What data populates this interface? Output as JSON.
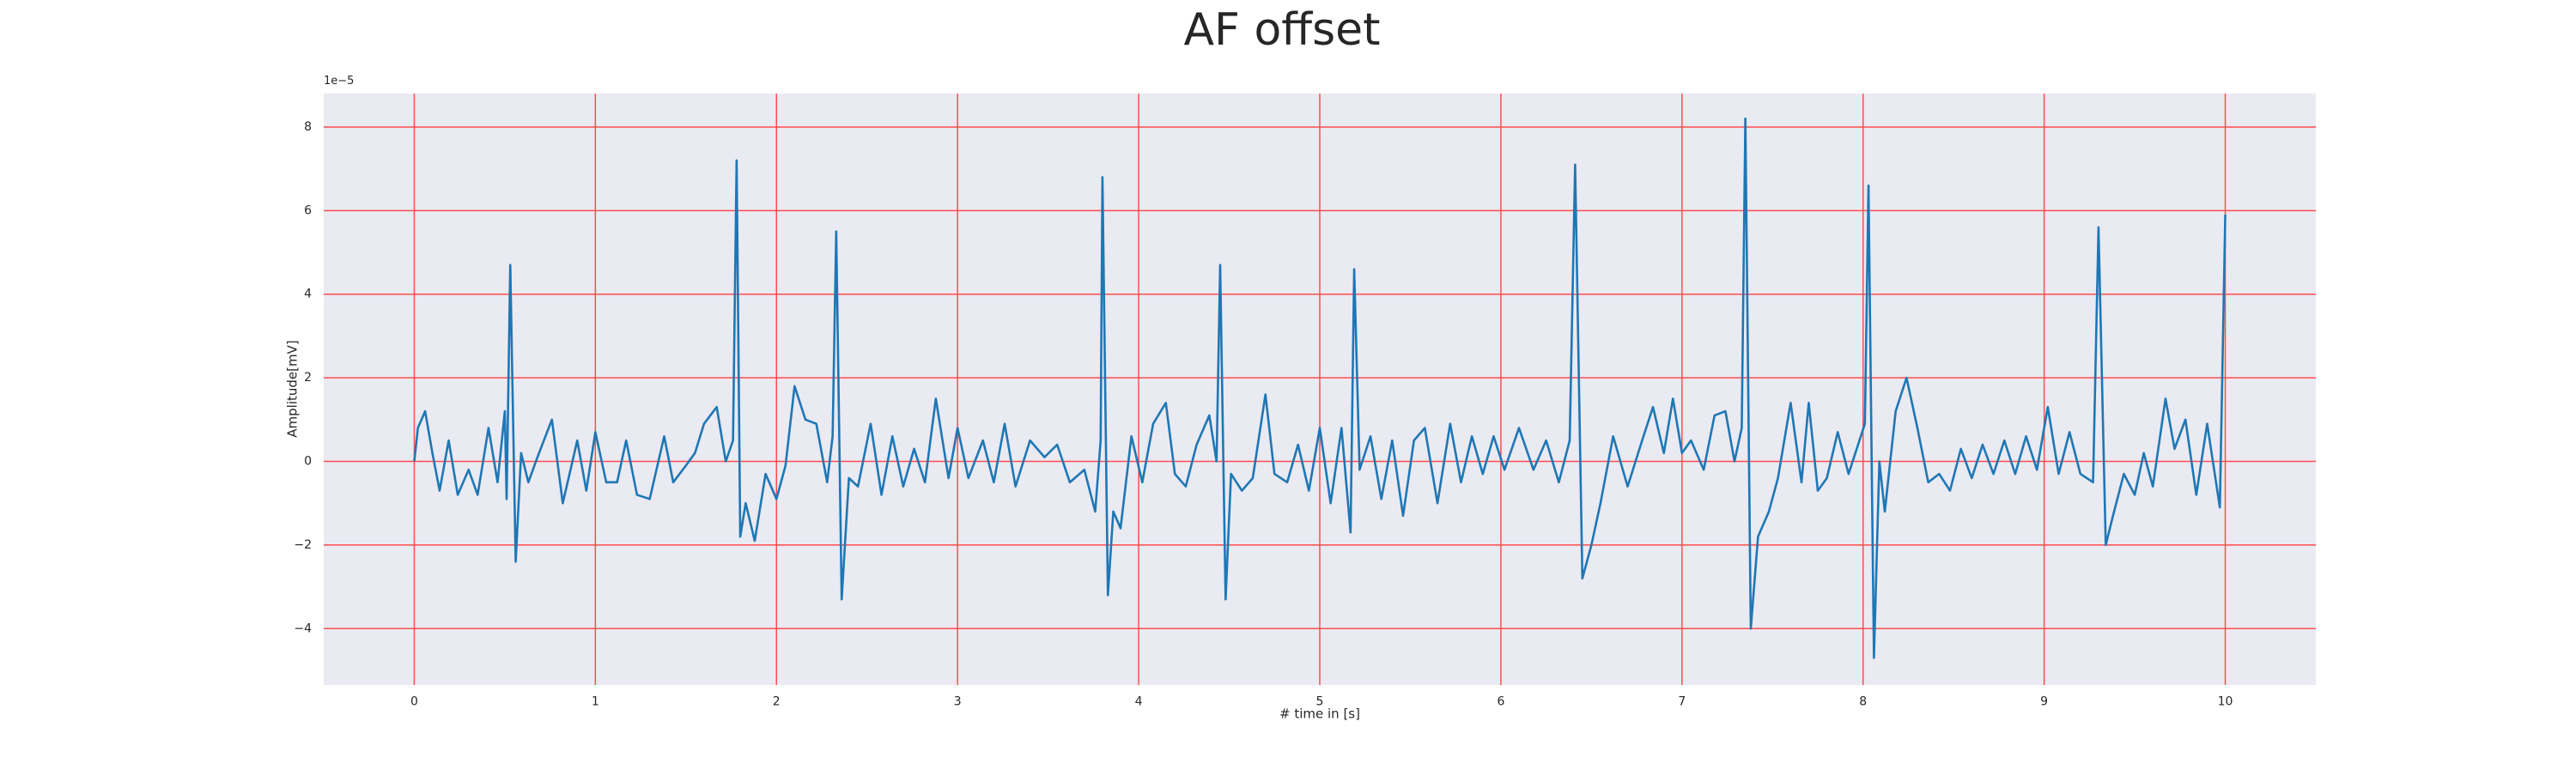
{
  "chart_data": {
    "type": "line",
    "title": "AF offset",
    "xlabel": "# time in [s]",
    "ylabel": "Amplitude[mV]",
    "y_offset_text": "1e−5",
    "x": [
      0.0,
      0.02,
      0.06,
      0.1,
      0.14,
      0.19,
      0.24,
      0.3,
      0.35,
      0.41,
      0.46,
      0.5,
      0.51,
      0.53,
      0.56,
      0.59,
      0.63,
      0.68,
      0.76,
      0.82,
      0.9,
      0.95,
      1.0,
      1.06,
      1.12,
      1.17,
      1.23,
      1.3,
      1.38,
      1.43,
      1.5,
      1.55,
      1.6,
      1.67,
      1.72,
      1.76,
      1.78,
      1.8,
      1.83,
      1.88,
      1.94,
      2.0,
      2.05,
      2.1,
      2.16,
      2.22,
      2.28,
      2.31,
      2.33,
      2.36,
      2.4,
      2.45,
      2.52,
      2.58,
      2.64,
      2.7,
      2.76,
      2.82,
      2.88,
      2.95,
      3.0,
      3.06,
      3.14,
      3.2,
      3.26,
      3.32,
      3.4,
      3.48,
      3.55,
      3.62,
      3.7,
      3.76,
      3.79,
      3.8,
      3.83,
      3.86,
      3.9,
      3.96,
      4.02,
      4.08,
      4.15,
      4.2,
      4.26,
      4.32,
      4.39,
      4.43,
      4.45,
      4.48,
      4.51,
      4.57,
      4.63,
      4.7,
      4.75,
      4.82,
      4.88,
      4.94,
      5.0,
      5.06,
      5.12,
      5.17,
      5.19,
      5.22,
      5.28,
      5.34,
      5.4,
      5.46,
      5.52,
      5.58,
      5.65,
      5.72,
      5.78,
      5.84,
      5.9,
      5.96,
      6.02,
      6.1,
      6.18,
      6.25,
      6.32,
      6.38,
      6.41,
      6.45,
      6.5,
      6.55,
      6.62,
      6.7,
      6.78,
      6.84,
      6.9,
      6.95,
      7.0,
      7.05,
      7.12,
      7.18,
      7.24,
      7.29,
      7.33,
      7.35,
      7.38,
      7.42,
      7.48,
      7.53,
      7.6,
      7.66,
      7.7,
      7.75,
      7.8,
      7.86,
      7.92,
      7.98,
      8.01,
      8.03,
      8.06,
      8.09,
      8.12,
      8.18,
      8.24,
      8.3,
      8.36,
      8.42,
      8.48,
      8.54,
      8.6,
      8.66,
      8.72,
      8.78,
      8.84,
      8.9,
      8.96,
      9.02,
      9.08,
      9.14,
      9.2,
      9.27,
      9.3,
      9.34,
      9.38,
      9.44,
      9.5,
      9.55,
      9.6,
      9.67,
      9.72,
      9.78,
      9.84,
      9.9,
      9.97,
      10.0
    ],
    "series": [
      {
        "color": "#1f77b4",
        "values": [
          0.0,
          0.8,
          1.2,
          0.2,
          -0.7,
          0.5,
          -0.8,
          -0.2,
          -0.8,
          0.8,
          -0.5,
          1.2,
          -0.9,
          4.7,
          -2.4,
          0.2,
          -0.5,
          0.1,
          1.0,
          -1.0,
          0.5,
          -0.7,
          0.7,
          -0.5,
          -0.5,
          0.5,
          -0.8,
          -0.9,
          0.6,
          -0.5,
          -0.1,
          0.2,
          0.9,
          1.3,
          0.0,
          0.5,
          7.2,
          -1.8,
          -1.0,
          -1.9,
          -0.3,
          -0.9,
          -0.1,
          1.8,
          1.0,
          0.9,
          -0.5,
          0.6,
          5.5,
          -3.3,
          -0.4,
          -0.6,
          0.9,
          -0.8,
          0.6,
          -0.6,
          0.3,
          -0.5,
          1.5,
          -0.4,
          0.8,
          -0.4,
          0.5,
          -0.5,
          0.9,
          -0.6,
          0.5,
          0.1,
          0.4,
          -0.5,
          -0.2,
          -1.2,
          0.5,
          6.8,
          -3.2,
          -1.2,
          -1.6,
          0.6,
          -0.5,
          0.9,
          1.4,
          -0.3,
          -0.6,
          0.4,
          1.1,
          0.0,
          4.7,
          -3.3,
          -0.3,
          -0.7,
          -0.4,
          1.6,
          -0.3,
          -0.5,
          0.4,
          -0.7,
          0.8,
          -1.0,
          0.8,
          -1.7,
          4.6,
          -0.2,
          0.6,
          -0.9,
          0.5,
          -1.3,
          0.5,
          0.8,
          -1.0,
          0.9,
          -0.5,
          0.6,
          -0.3,
          0.6,
          -0.2,
          0.8,
          -0.2,
          0.5,
          -0.5,
          0.5,
          7.1,
          -2.8,
          -2.0,
          -1.0,
          0.6,
          -0.6,
          0.5,
          1.3,
          0.2,
          1.5,
          0.2,
          0.5,
          -0.2,
          1.1,
          1.2,
          0.0,
          0.8,
          8.2,
          -4.0,
          -1.8,
          -1.2,
          -0.4,
          1.4,
          -0.5,
          1.4,
          -0.7,
          -0.4,
          0.7,
          -0.3,
          0.5,
          0.9,
          6.6,
          -4.7,
          0.0,
          -1.2,
          1.2,
          2.0,
          0.8,
          -0.5,
          -0.3,
          -0.7,
          0.3,
          -0.4,
          0.4,
          -0.3,
          0.5,
          -0.3,
          0.6,
          -0.2,
          1.3,
          -0.3,
          0.7,
          -0.3,
          -0.5,
          5.6,
          -2.0,
          -1.3,
          -0.3,
          -0.8,
          0.2,
          -0.6,
          1.5,
          0.3,
          1.0,
          -0.8,
          0.9,
          -1.1,
          5.9
        ]
      }
    ],
    "xlim": [
      -0.5,
      10.5
    ],
    "ylim": [
      -5.35,
      8.8
    ],
    "xticks": [
      0,
      1,
      2,
      3,
      4,
      5,
      6,
      7,
      8,
      9,
      10
    ],
    "yticks": [
      {
        "value": -4,
        "label": "−4"
      },
      {
        "value": -2,
        "label": "−2"
      },
      0,
      2,
      4,
      6,
      8
    ],
    "grid": true,
    "grid_color": "#ff4d4d",
    "background": "#eaeaf2"
  }
}
